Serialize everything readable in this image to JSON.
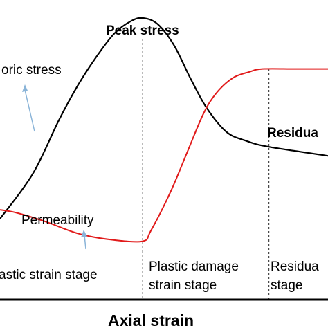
{
  "chart_data": {
    "type": "line",
    "xlabel": "Axial strain",
    "series": [
      {
        "name": "Deviatoric stress",
        "color": "#000000",
        "points": [
          [
            0,
            27
          ],
          [
            10,
            42
          ],
          [
            18,
            60
          ],
          [
            24,
            72
          ],
          [
            30,
            82
          ],
          [
            35,
            89
          ],
          [
            40,
            93
          ],
          [
            43.5,
            94
          ],
          [
            48,
            92
          ],
          [
            53,
            85
          ],
          [
            58,
            74
          ],
          [
            63,
            64
          ],
          [
            69,
            56
          ],
          [
            75,
            53
          ],
          [
            82,
            51
          ],
          [
            100,
            48
          ]
        ]
      },
      {
        "name": "Permeability",
        "color": "#e11a1a",
        "points": [
          [
            0,
            30
          ],
          [
            5,
            29
          ],
          [
            14,
            26
          ],
          [
            24,
            22
          ],
          [
            34,
            20
          ],
          [
            43.5,
            19.5
          ],
          [
            46,
            23
          ],
          [
            52,
            36
          ],
          [
            57,
            49
          ],
          [
            62,
            62
          ],
          [
            66,
            69
          ],
          [
            71,
            74
          ],
          [
            76,
            76
          ],
          [
            80,
            77
          ],
          [
            90,
            77
          ],
          [
            100,
            77
          ]
        ]
      }
    ],
    "stages": [
      "Plastic strain stage",
      "Plastic damage strain stage",
      "Residual stage"
    ],
    "boundaries": [
      43.5,
      82
    ],
    "xlim": [
      0,
      100
    ],
    "ylim": [
      0,
      100
    ],
    "grid": false,
    "legend": "none"
  },
  "labels": {
    "peak": "Peak stress",
    "deviatoric": "oric stress",
    "residual": "Residua",
    "permeability": "Permeability",
    "stage1": "astic strain stage",
    "stage2_line1": "Plastic damage",
    "stage2_line2": "strain stage",
    "stage3_line1": "Residua",
    "stage3_line2": "stage",
    "xlabel": "Axial strain"
  },
  "colors": {
    "stress": "#000000",
    "permeability": "#e11a1a",
    "arrow": "#8ab4d8"
  }
}
